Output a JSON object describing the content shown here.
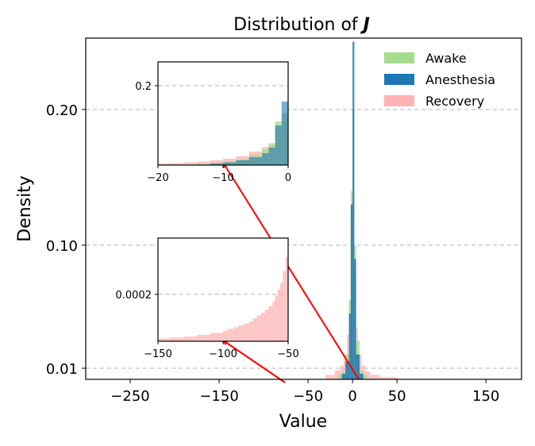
{
  "chart_data": {
    "type": "histogram",
    "title_prefix": "Distribution of ",
    "title_symbol": "J",
    "xlabel": "Value",
    "ylabel": "Density",
    "xlim": [
      -300,
      190
    ],
    "xticks": [
      -250,
      -150,
      -50,
      0,
      50,
      150
    ],
    "xtick_labels": [
      "−250",
      "−150",
      "−50",
      "0",
      "50",
      "150"
    ],
    "yticks": [
      0.2,
      0.1,
      0.01
    ],
    "ytick_labels": [
      "0.20",
      "0.10",
      "0.01"
    ],
    "y_scale": "piecewise",
    "grid": "y-dashed",
    "legend": {
      "position": "top-right",
      "entries": [
        {
          "label": "Awake",
          "color": "#a6dc8c"
        },
        {
          "label": "Anesthesia",
          "color": "#1f77b4"
        },
        {
          "label": "Recovery",
          "color": "#ffb3b3"
        }
      ]
    },
    "series": [
      {
        "name": "Awake",
        "color": "#a6dc8c",
        "bins": [
          [
            -16,
            -12,
            0.004
          ],
          [
            -12,
            -8,
            0.007
          ],
          [
            -8,
            -4,
            0.02
          ],
          [
            -4,
            -2,
            0.06
          ],
          [
            -2,
            0,
            0.14
          ],
          [
            0,
            2,
            0.2
          ],
          [
            2,
            4,
            0.1
          ],
          [
            4,
            8,
            0.03
          ],
          [
            8,
            12,
            0.008
          ],
          [
            12,
            16,
            0.004
          ]
        ]
      },
      {
        "name": "Anesthesia",
        "color": "#1f77b4",
        "bins": [
          [
            -12,
            -8,
            0.005
          ],
          [
            -8,
            -4,
            0.015
          ],
          [
            -4,
            -2,
            0.05
          ],
          [
            -2,
            0,
            0.13
          ],
          [
            0,
            2,
            0.25
          ],
          [
            2,
            4,
            0.09
          ],
          [
            4,
            8,
            0.02
          ],
          [
            8,
            12,
            0.005
          ]
        ]
      },
      {
        "name": "Recovery",
        "color": "#ffb3b3",
        "bins": [
          [
            -30,
            -20,
            0.004
          ],
          [
            -20,
            -14,
            0.008
          ],
          [
            -14,
            -10,
            0.012
          ],
          [
            -10,
            -6,
            0.02
          ],
          [
            -6,
            -4,
            0.035
          ],
          [
            -4,
            -2,
            0.06
          ],
          [
            -2,
            0,
            0.12
          ],
          [
            0,
            2,
            0.15
          ],
          [
            2,
            4,
            0.08
          ],
          [
            4,
            6,
            0.04
          ],
          [
            6,
            10,
            0.02
          ],
          [
            10,
            14,
            0.012
          ],
          [
            14,
            20,
            0.007
          ],
          [
            20,
            30,
            0.004
          ],
          [
            30,
            50,
            0.002
          ]
        ]
      }
    ],
    "insets": [
      {
        "name": "inset-upper",
        "xlim": [
          -20,
          0
        ],
        "xticks": [
          -20,
          -10,
          0
        ],
        "xtick_labels": [
          "−20",
          "−10",
          "0"
        ],
        "yticks": [
          0.2
        ],
        "ytick_labels": [
          "0.2"
        ],
        "ylim": [
          0,
          0.26
        ],
        "series": [
          {
            "name": "Recovery",
            "color": "#ffb3b3",
            "bins": [
              [
                -20,
                -18,
                0.004
              ],
              [
                -18,
                -16,
                0.005
              ],
              [
                -16,
                -14,
                0.007
              ],
              [
                -14,
                -12,
                0.009
              ],
              [
                -12,
                -10,
                0.012
              ],
              [
                -10,
                -8,
                0.016
              ],
              [
                -8,
                -6,
                0.022
              ],
              [
                -6,
                -4,
                0.034
              ],
              [
                -4,
                -3,
                0.045
              ],
              [
                -3,
                -2,
                0.05
              ],
              [
                -2,
                -1,
                0.09
              ],
              [
                -1,
                0,
                0.11
              ]
            ]
          },
          {
            "name": "Awake",
            "color": "#a6dc8c",
            "bins": [
              [
                -14,
                -12,
                0.004
              ],
              [
                -12,
                -10,
                0.006
              ],
              [
                -10,
                -8,
                0.009
              ],
              [
                -8,
                -6,
                0.015
              ],
              [
                -6,
                -4,
                0.026
              ],
              [
                -4,
                -3,
                0.04
              ],
              [
                -3,
                -2,
                0.055
              ],
              [
                -2,
                -1,
                0.11
              ],
              [
                -1,
                0,
                0.13
              ]
            ]
          },
          {
            "name": "Anesthesia",
            "color": "#1f77b4",
            "bins": [
              [
                -12,
                -10,
                0.004
              ],
              [
                -10,
                -8,
                0.007
              ],
              [
                -8,
                -6,
                0.012
              ],
              [
                -6,
                -4,
                0.02
              ],
              [
                -4,
                -3,
                0.03
              ],
              [
                -3,
                -2,
                0.044
              ],
              [
                -2,
                -1,
                0.1
              ],
              [
                -1,
                0,
                0.16
              ]
            ]
          }
        ]
      },
      {
        "name": "inset-lower",
        "xlim": [
          -150,
          -50
        ],
        "xticks": [
          -150,
          -100,
          -50
        ],
        "xtick_labels": [
          "−150",
          "−100",
          "−50"
        ],
        "yticks": [
          0.0002
        ],
        "ytick_labels": [
          "0.0002"
        ],
        "ylim": [
          0,
          0.00044
        ],
        "series": [
          {
            "name": "Recovery",
            "color": "#ffb3b3",
            "bins": [
              [
                -150,
                -140,
                1.2e-05
              ],
              [
                -140,
                -130,
                1.6e-05
              ],
              [
                -130,
                -120,
                2e-05
              ],
              [
                -120,
                -110,
                2.7e-05
              ],
              [
                -110,
                -100,
                3.5e-05
              ],
              [
                -100,
                -96,
                4.5e-05
              ],
              [
                -96,
                -92,
                5.3e-05
              ],
              [
                -92,
                -88,
                6e-05
              ],
              [
                -88,
                -84,
                6.8e-05
              ],
              [
                -84,
                -80,
                7.5e-05
              ],
              [
                -80,
                -77,
                8.5e-05
              ],
              [
                -77,
                -74,
                9.8e-05
              ],
              [
                -74,
                -71,
                0.00011
              ],
              [
                -71,
                -68,
                0.00012
              ],
              [
                -68,
                -65,
                0.000135
              ],
              [
                -65,
                -62,
                0.00015
              ],
              [
                -62,
                -60,
                0.00017
              ],
              [
                -60,
                -58,
                0.000195
              ],
              [
                -58,
                -56,
                0.00022
              ],
              [
                -56,
                -54,
                0.00025
              ],
              [
                -54,
                -52,
                0.0003
              ],
              [
                -52,
                -50,
                0.00036
              ]
            ]
          }
        ]
      }
    ]
  }
}
